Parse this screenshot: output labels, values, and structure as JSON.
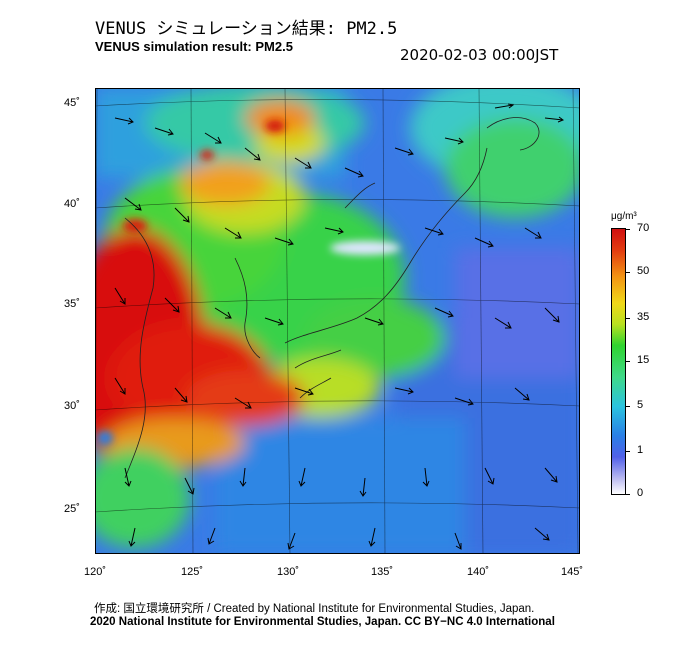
{
  "header": {
    "title_ja": "VENUS シミュレーション結果: PM2.5",
    "title_en": "VENUS simulation result: PM2.5",
    "timestamp": "2020-02-03 00:00JST"
  },
  "map": {
    "lat_labels": [
      "45˚",
      "40˚",
      "35˚",
      "30˚",
      "25˚"
    ],
    "lon_labels": [
      "120˚",
      "125˚",
      "130˚",
      "135˚",
      "140˚",
      "145˚"
    ]
  },
  "colorbar": {
    "unit": "μg/m³",
    "ticks": [
      "70",
      "50",
      "35",
      "15",
      "5",
      "1",
      "0"
    ],
    "colors": {
      "low": "#ffffff",
      "blue": "#2a7fe6",
      "cyan": "#2bc3df",
      "green": "#2fd42f",
      "yellow": "#f0d818",
      "orange": "#f29414",
      "red": "#d01010"
    }
  },
  "footer": {
    "credit": "作成: 国立環境研究所 / Created by National Institute for Environmental Studies, Japan.",
    "copyright": "2020 National Institute for Environmental Studies, Japan. CC BY−NC 4.0 International"
  }
}
